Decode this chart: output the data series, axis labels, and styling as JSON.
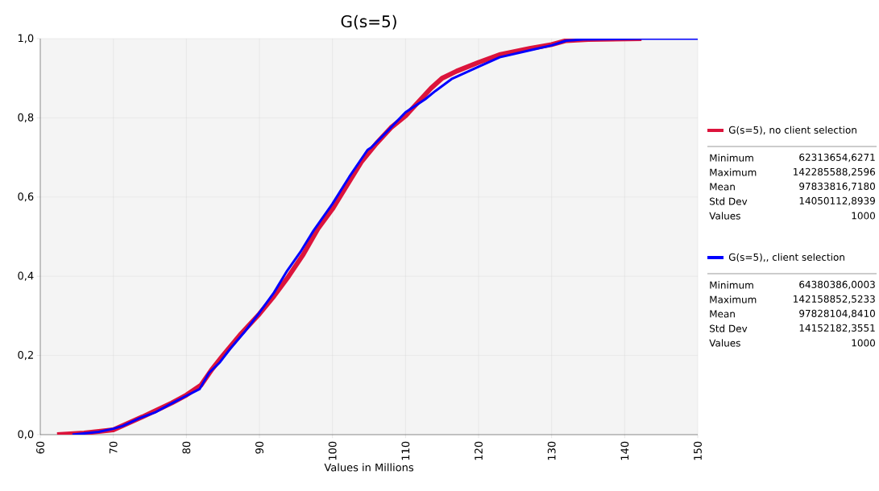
{
  "chart_data": {
    "type": "line",
    "title": "G(s=5)",
    "xlabel": "Values in Millions",
    "xlim": [
      60,
      150
    ],
    "xticks": [
      60,
      70,
      80,
      90,
      100,
      110,
      120,
      130,
      140,
      150
    ],
    "ylim": [
      0,
      1
    ],
    "yticks": [
      {
        "value": 0,
        "label": "0,0"
      },
      {
        "value": 0.2,
        "label": "0,2"
      },
      {
        "value": 0.4,
        "label": "0,4"
      },
      {
        "value": 0.6,
        "label": "0,6"
      },
      {
        "value": 0.8,
        "label": "0,8"
      },
      {
        "value": 1,
        "label": "1,0"
      }
    ],
    "grid": true,
    "legend": "right",
    "marker": "none",
    "line_style": "solid",
    "series": [
      {
        "name": "G(s=5), no client selection",
        "color": "#dc143c",
        "x": [
          62.3,
          66,
          70,
          74,
          78,
          80,
          82,
          83.5,
          85,
          87.5,
          90,
          92,
          94,
          96,
          98,
          100,
          102,
          104,
          106,
          108,
          110,
          112,
          113.5,
          115,
          117,
          120,
          123,
          127,
          130,
          132,
          135,
          142.3
        ],
        "values": [
          0,
          0.004,
          0.012,
          0.045,
          0.08,
          0.1,
          0.125,
          0.165,
          0.2,
          0.255,
          0.305,
          0.35,
          0.4,
          0.455,
          0.52,
          0.57,
          0.63,
          0.69,
          0.735,
          0.775,
          0.805,
          0.845,
          0.875,
          0.9,
          0.918,
          0.94,
          0.96,
          0.975,
          0.985,
          0.995,
          0.998,
          1
        ]
      },
      {
        "name": "G(s=5),, client selection",
        "color": "#0000ff",
        "x": [
          64.4,
          68,
          70,
          71.3,
          73.5,
          75.7,
          77.9,
          80,
          81.8,
          83.1,
          84.6,
          86,
          87.9,
          90,
          92,
          93.8,
          95.6,
          97.4,
          100,
          102.3,
          104.8,
          105.3,
          107.5,
          110,
          112.7,
          114.1,
          116.3,
          120,
          122.9,
          126.9,
          130,
          132,
          134.3,
          142.2,
          150
        ],
        "values": [
          0,
          0.007,
          0.015,
          0.022,
          0.041,
          0.056,
          0.078,
          0.098,
          0.115,
          0.156,
          0.183,
          0.217,
          0.258,
          0.308,
          0.359,
          0.414,
          0.461,
          0.515,
          0.583,
          0.651,
          0.719,
          0.725,
          0.766,
          0.814,
          0.847,
          0.868,
          0.898,
          0.929,
          0.953,
          0.97,
          0.983,
          0.995,
          0.998,
          1,
          1
        ]
      }
    ],
    "annotations": [
      "Minimum",
      "62313654,6271",
      "Maximum",
      "142285588,2596",
      "Mean",
      "97833816,7180",
      "Std Dev",
      "14050112,8939",
      "Values",
      "1000",
      "Minimum",
      "64380386,0003",
      "Maximum",
      "142158852,5233",
      "Mean",
      "97828104,8410",
      "Std Dev",
      "14152182,3551",
      "Values",
      "1000"
    ]
  }
}
